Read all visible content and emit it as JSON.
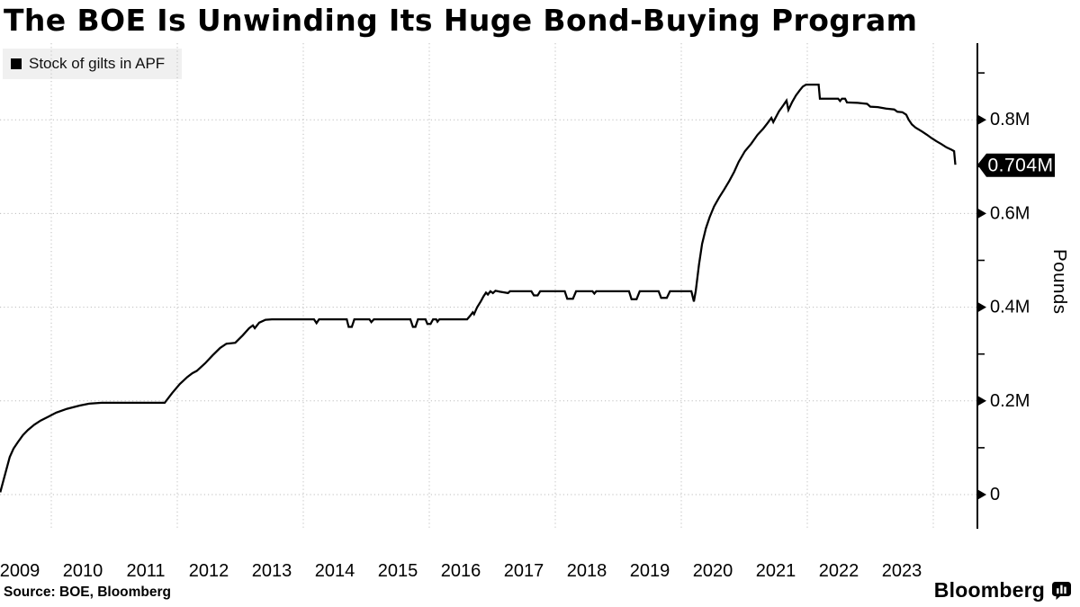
{
  "page": {
    "title": "The BOE Is Unwinding Its Huge Bond-Buying Program"
  },
  "legend": {
    "label": "Stock of gilts in APF",
    "swatch_color": "#000000"
  },
  "footer": {
    "source": "Source: BOE, Bloomberg",
    "brand": "Bloomberg"
  },
  "chart_data": {
    "type": "line",
    "title": "The BOE Is Unwinding Its Huge Bond-Buying Program",
    "series_name": "Stock of gilts in APF",
    "ylabel": "Pounds",
    "line_color": "#000000",
    "grid_color": "#bdbdbd",
    "grid_style": "dotted",
    "legend_position": "top-left",
    "last_value": 0.704,
    "last_value_label": "0.704M",
    "xlim": [
      2009.186,
      2024.7
    ],
    "ylim": [
      -0.073,
      0.9635
    ],
    "x_ticks": [
      2009,
      2010,
      2011,
      2012,
      2013,
      2014,
      2015,
      2016,
      2017,
      2018,
      2019,
      2020,
      2021,
      2022,
      2023
    ],
    "v_gridline_years": [
      2010,
      2012,
      2014,
      2016,
      2018,
      2020,
      2022,
      2024
    ],
    "y_ticks": [
      {
        "value": 0,
        "label": "0"
      },
      {
        "value": 0.2,
        "label": "0.2M"
      },
      {
        "value": 0.4,
        "label": "0.4M"
      },
      {
        "value": 0.6,
        "label": "0.6M"
      },
      {
        "value": 0.8,
        "label": "0.8M"
      }
    ],
    "y_minor_ticks": [
      0.1,
      0.3,
      0.5,
      0.7,
      0.9
    ],
    "points": [
      [
        2009.19,
        0.005
      ],
      [
        2009.24,
        0.03
      ],
      [
        2009.29,
        0.055
      ],
      [
        2009.34,
        0.08
      ],
      [
        2009.4,
        0.098
      ],
      [
        2009.47,
        0.112
      ],
      [
        2009.55,
        0.127
      ],
      [
        2009.63,
        0.138
      ],
      [
        2009.73,
        0.149
      ],
      [
        2009.83,
        0.158
      ],
      [
        2009.95,
        0.166
      ],
      [
        2010.08,
        0.175
      ],
      [
        2010.25,
        0.183
      ],
      [
        2010.45,
        0.19
      ],
      [
        2010.6,
        0.194
      ],
      [
        2010.8,
        0.196
      ],
      [
        2011.25,
        0.196
      ],
      [
        2011.8,
        0.196
      ],
      [
        2011.92,
        0.217
      ],
      [
        2012.04,
        0.236
      ],
      [
        2012.16,
        0.251
      ],
      [
        2012.24,
        0.259
      ],
      [
        2012.31,
        0.264
      ],
      [
        2012.44,
        0.28
      ],
      [
        2012.56,
        0.297
      ],
      [
        2012.68,
        0.313
      ],
      [
        2012.78,
        0.322
      ],
      [
        2012.92,
        0.324
      ],
      [
        2013.04,
        0.34
      ],
      [
        2013.14,
        0.355
      ],
      [
        2013.2,
        0.361
      ],
      [
        2013.23,
        0.355
      ],
      [
        2013.3,
        0.367
      ],
      [
        2013.4,
        0.373
      ],
      [
        2013.5,
        0.374
      ],
      [
        2014.17,
        0.374
      ],
      [
        2014.21,
        0.366
      ],
      [
        2014.25,
        0.374
      ],
      [
        2014.69,
        0.374
      ],
      [
        2014.72,
        0.358
      ],
      [
        2014.77,
        0.358
      ],
      [
        2014.81,
        0.374
      ],
      [
        2015.05,
        0.374
      ],
      [
        2015.08,
        0.368
      ],
      [
        2015.12,
        0.374
      ],
      [
        2015.7,
        0.374
      ],
      [
        2015.74,
        0.358
      ],
      [
        2015.78,
        0.358
      ],
      [
        2015.82,
        0.374
      ],
      [
        2015.94,
        0.374
      ],
      [
        2015.97,
        0.364
      ],
      [
        2016.02,
        0.364
      ],
      [
        2016.06,
        0.374
      ],
      [
        2016.11,
        0.374
      ],
      [
        2016.13,
        0.369
      ],
      [
        2016.16,
        0.374
      ],
      [
        2016.6,
        0.374
      ],
      [
        2016.65,
        0.382
      ],
      [
        2016.69,
        0.389
      ],
      [
        2016.71,
        0.385
      ],
      [
        2016.76,
        0.4
      ],
      [
        2016.82,
        0.413
      ],
      [
        2016.86,
        0.423
      ],
      [
        2016.9,
        0.431
      ],
      [
        2016.93,
        0.427
      ],
      [
        2016.97,
        0.434
      ],
      [
        2017.01,
        0.43
      ],
      [
        2017.05,
        0.435
      ],
      [
        2017.12,
        0.433
      ],
      [
        2017.25,
        0.43
      ],
      [
        2017.28,
        0.434
      ],
      [
        2017.62,
        0.434
      ],
      [
        2017.66,
        0.425
      ],
      [
        2017.72,
        0.425
      ],
      [
        2017.76,
        0.434
      ],
      [
        2018.15,
        0.434
      ],
      [
        2018.19,
        0.418
      ],
      [
        2018.28,
        0.418
      ],
      [
        2018.33,
        0.434
      ],
      [
        2018.59,
        0.434
      ],
      [
        2018.62,
        0.429
      ],
      [
        2018.65,
        0.434
      ],
      [
        2019.17,
        0.434
      ],
      [
        2019.21,
        0.417
      ],
      [
        2019.29,
        0.417
      ],
      [
        2019.34,
        0.434
      ],
      [
        2019.64,
        0.434
      ],
      [
        2019.68,
        0.42
      ],
      [
        2019.77,
        0.42
      ],
      [
        2019.82,
        0.434
      ],
      [
        2020.16,
        0.434
      ],
      [
        2020.2,
        0.412
      ],
      [
        2020.23,
        0.435
      ],
      [
        2020.28,
        0.49
      ],
      [
        2020.33,
        0.535
      ],
      [
        2020.39,
        0.568
      ],
      [
        2020.45,
        0.592
      ],
      [
        2020.52,
        0.615
      ],
      [
        2020.6,
        0.634
      ],
      [
        2020.68,
        0.651
      ],
      [
        2020.76,
        0.669
      ],
      [
        2020.84,
        0.689
      ],
      [
        2020.91,
        0.71
      ],
      [
        2021.01,
        0.733
      ],
      [
        2021.11,
        0.749
      ],
      [
        2021.21,
        0.768
      ],
      [
        2021.3,
        0.781
      ],
      [
        2021.37,
        0.793
      ],
      [
        2021.43,
        0.804
      ],
      [
        2021.46,
        0.795
      ],
      [
        2021.55,
        0.818
      ],
      [
        2021.62,
        0.831
      ],
      [
        2021.67,
        0.841
      ],
      [
        2021.7,
        0.821
      ],
      [
        2021.76,
        0.838
      ],
      [
        2021.82,
        0.852
      ],
      [
        2021.88,
        0.863
      ],
      [
        2021.93,
        0.871
      ],
      [
        2021.98,
        0.875
      ],
      [
        2022.18,
        0.875
      ],
      [
        2022.2,
        0.845
      ],
      [
        2022.49,
        0.845
      ],
      [
        2022.52,
        0.84
      ],
      [
        2022.55,
        0.845
      ],
      [
        2022.6,
        0.845
      ],
      [
        2022.63,
        0.837
      ],
      [
        2022.8,
        0.836
      ],
      [
        2022.95,
        0.834
      ],
      [
        2023.0,
        0.828
      ],
      [
        2023.12,
        0.827
      ],
      [
        2023.25,
        0.824
      ],
      [
        2023.38,
        0.822
      ],
      [
        2023.43,
        0.817
      ],
      [
        2023.51,
        0.816
      ],
      [
        2023.57,
        0.811
      ],
      [
        2023.61,
        0.8
      ],
      [
        2023.66,
        0.79
      ],
      [
        2023.72,
        0.783
      ],
      [
        2023.82,
        0.775
      ],
      [
        2023.9,
        0.768
      ],
      [
        2023.97,
        0.761
      ],
      [
        2024.05,
        0.754
      ],
      [
        2024.13,
        0.748
      ],
      [
        2024.21,
        0.741
      ],
      [
        2024.29,
        0.736
      ],
      [
        2024.33,
        0.733
      ],
      [
        2024.35,
        0.704
      ]
    ]
  }
}
